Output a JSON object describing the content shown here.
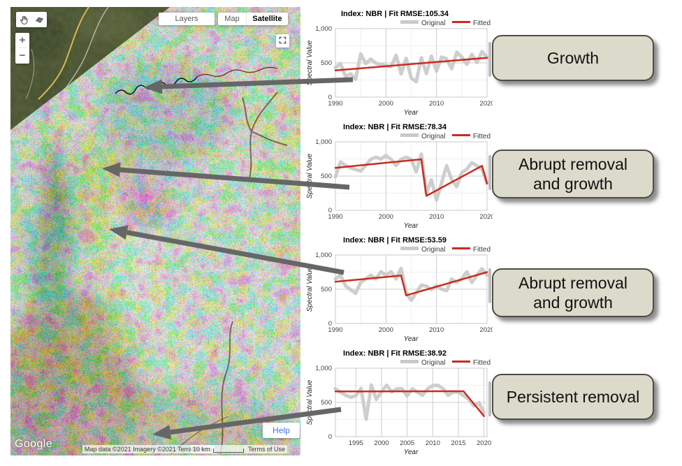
{
  "map": {
    "controls": {
      "layers_label": "Layers",
      "map_label": "Map",
      "satellite_label": "Satellite",
      "active_map_type": "Satellite",
      "zoom_in": "+",
      "zoom_out": "−",
      "help_label": "Help"
    },
    "attribution": {
      "logo": "Google",
      "map_data": "Map data ©2021 Imagery ©2021 TerraMetrics",
      "scale": "10 km",
      "terms": "Terms of Use"
    }
  },
  "annotations": {
    "box_fill": "#dcdaca",
    "box_border": "#4d4d45",
    "arrow_color": "#666666",
    "labels": [
      {
        "lines": [
          "Growth"
        ]
      },
      {
        "lines": [
          "Abrupt removal",
          "and growth"
        ]
      },
      {
        "lines": [
          "Abrupt removal",
          "and growth"
        ]
      },
      {
        "lines": [
          "Persistent removal"
        ]
      }
    ],
    "arrows": [
      {
        "from": [
          505,
          114
        ],
        "to": [
          206,
          125
        ]
      },
      {
        "from": [
          500,
          268
        ],
        "to": [
          146,
          241
        ]
      },
      {
        "from": [
          492,
          390
        ],
        "to": [
          156,
          328
        ]
      },
      {
        "from": [
          488,
          586
        ],
        "to": [
          218,
          622
        ]
      }
    ]
  },
  "chart_data": [
    {
      "type": "line",
      "title": "Index: NBR | Fit RMSE:105.34",
      "xlabel": "Year",
      "ylabel": "Spectral Value",
      "legend": [
        "Original",
        "Fitted"
      ],
      "ylim": [
        0,
        1000
      ],
      "yticks": [
        0,
        500,
        1000
      ],
      "ytick_labels": [
        "0",
        "500",
        "1,000"
      ],
      "minor_yticks": [
        250,
        750
      ],
      "xlim": [
        1990,
        2020
      ],
      "xticks": [
        1990,
        2000,
        2010,
        2020
      ],
      "xtick_labels": [
        "1990",
        "2000",
        "2010",
        "2020"
      ],
      "minor_xticks": [
        1995,
        2005,
        2015
      ],
      "series": [
        {
          "name": "Original",
          "color": "#c9c9c9",
          "width": 5,
          "opacity": 0.9,
          "x_start": 1990,
          "y": [
            430,
            490,
            300,
            340,
            260,
            630,
            490,
            555,
            495,
            475,
            460,
            445,
            610,
            340,
            565,
            280,
            225,
            575,
            345,
            600,
            380,
            585,
            560,
            415,
            655,
            585,
            480,
            625,
            505,
            665,
            580
          ]
        },
        {
          "name": "Fitted",
          "color": "#cc2b1d",
          "width": 2.5,
          "x": [
            1990,
            2020
          ],
          "y": [
            390,
            575
          ]
        }
      ]
    },
    {
      "type": "line",
      "title": "Index: NBR | Fit RMSE:78.34",
      "xlabel": "Year",
      "ylabel": "Spectral Value",
      "legend": [
        "Original",
        "Fitted"
      ],
      "ylim": [
        0,
        1000
      ],
      "yticks": [
        0,
        500,
        1000
      ],
      "ytick_labels": [
        "0",
        "500",
        "1,000"
      ],
      "minor_yticks": [
        250,
        750
      ],
      "xlim": [
        1990,
        2020
      ],
      "xticks": [
        1990,
        2000,
        2010,
        2020
      ],
      "xtick_labels": [
        "1990",
        "2000",
        "2010",
        "2020"
      ],
      "minor_xticks": [
        1995,
        2005,
        2015
      ],
      "series": [
        {
          "name": "Original",
          "color": "#c9c9c9",
          "width": 5,
          "opacity": 0.9,
          "x_start": 1990,
          "y": [
            490,
            705,
            655,
            620,
            595,
            575,
            655,
            745,
            775,
            750,
            800,
            745,
            655,
            745,
            775,
            745,
            560,
            820,
            250,
            445,
            150,
            400,
            650,
            450,
            345,
            550,
            600,
            695,
            650,
            600,
            400
          ]
        },
        {
          "name": "Fitted",
          "color": "#cc2b1d",
          "width": 2.5,
          "x": [
            1990,
            2007,
            2008,
            2019,
            2020
          ],
          "y": [
            620,
            745,
            210,
            650,
            390
          ]
        }
      ]
    },
    {
      "type": "line",
      "title": "Index: NBR | Fit RMSE:53.59",
      "xlabel": "Year",
      "ylabel": "Spectral Value",
      "legend": [
        "Original",
        "Fitted"
      ],
      "ylim": [
        0,
        1000
      ],
      "yticks": [
        0,
        500,
        1000
      ],
      "ytick_labels": [
        "0",
        "500",
        "1,000"
      ],
      "minor_yticks": [
        250,
        750
      ],
      "xlim": [
        1990,
        2020
      ],
      "xticks": [
        1990,
        2000,
        2010,
        2020
      ],
      "xtick_labels": [
        "1990",
        "2000",
        "2010",
        "2020"
      ],
      "minor_xticks": [
        1995,
        2005,
        2015
      ],
      "series": [
        {
          "name": "Original",
          "color": "#c9c9c9",
          "width": 5,
          "opacity": 0.9,
          "x_start": 1990,
          "y": [
            650,
            705,
            550,
            495,
            440,
            600,
            650,
            705,
            650,
            755,
            705,
            755,
            650,
            805,
            450,
            340,
            450,
            560,
            545,
            495,
            550,
            500,
            480,
            650,
            600,
            650,
            755,
            600,
            700,
            800,
            705
          ]
        },
        {
          "name": "Fitted",
          "color": "#cc2b1d",
          "width": 2.5,
          "x": [
            1990,
            2003,
            2004,
            2020
          ],
          "y": [
            610,
            700,
            410,
            750
          ]
        }
      ]
    },
    {
      "type": "line",
      "title": "Index: NBR | Fit RMSE:38.92",
      "xlabel": "Year",
      "ylabel": "Spectral Value",
      "legend": [
        "Original",
        "Fitted"
      ],
      "ylim": [
        0,
        1000
      ],
      "yticks": [
        0,
        500,
        1000
      ],
      "ytick_labels": [
        "0",
        "500",
        "1,000"
      ],
      "minor_yticks": [
        250,
        750
      ],
      "xlim": [
        1991,
        2020.6
      ],
      "xticks": [
        1995,
        2000,
        2005,
        2010,
        2015,
        2020
      ],
      "xtick_labels": [
        "1995",
        "2000",
        "2005",
        "2010",
        "2015",
        "2020"
      ],
      "minor_xticks": [],
      "series": [
        {
          "name": "Original",
          "color": "#c9c9c9",
          "width": 5,
          "opacity": 0.9,
          "x_start": 1991,
          "y": [
            700,
            650,
            605,
            575,
            600,
            705,
            255,
            755,
            545,
            655,
            750,
            655,
            700,
            700,
            595,
            700,
            650,
            605,
            700,
            745,
            750,
            700,
            605,
            650,
            650,
            600,
            550,
            450,
            495,
            350
          ]
        },
        {
          "name": "Fitted",
          "color": "#cc2b1d",
          "width": 2.5,
          "x": [
            1991,
            2016,
            2020
          ],
          "y": [
            660,
            663,
            300
          ]
        }
      ]
    }
  ]
}
